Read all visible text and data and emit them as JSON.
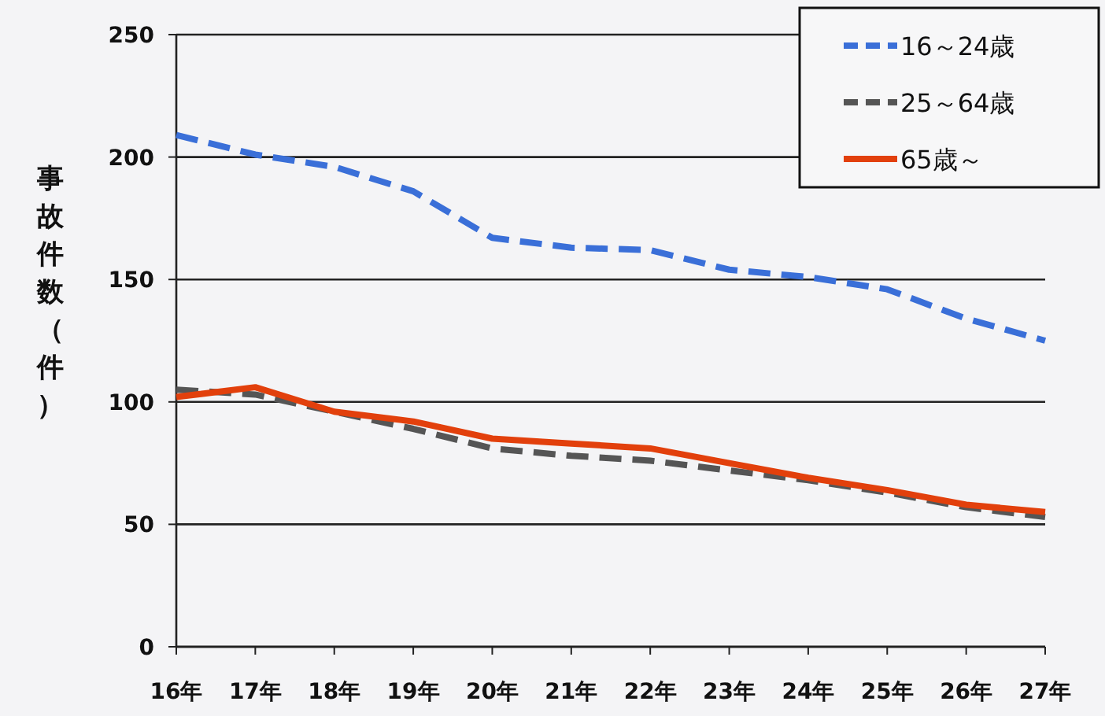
{
  "chart_data": {
    "type": "line",
    "ylabel": "事故件数（件）",
    "categories": [
      "16年",
      "17年",
      "18年",
      "19年",
      "20年",
      "21年",
      "22年",
      "23年",
      "24年",
      "25年",
      "26年",
      "27年"
    ],
    "series": [
      {
        "name": "16～24歳",
        "color": "#3a6fd8",
        "line_style": "dashed",
        "values": [
          209,
          201,
          196,
          186,
          167,
          163,
          162,
          154,
          151,
          146,
          134,
          125
        ]
      },
      {
        "name": "25～64歳",
        "color": "#555555",
        "line_style": "dashed",
        "values": [
          105,
          103,
          96,
          89,
          81,
          78,
          76,
          72,
          68,
          63,
          57,
          53
        ]
      },
      {
        "name": "65歳～",
        "color": "#e2400c",
        "line_style": "solid",
        "values": [
          102,
          106,
          96,
          92,
          85,
          83,
          81,
          75,
          69,
          64,
          58,
          55
        ]
      }
    ],
    "ylim": [
      0,
      250
    ],
    "yticks": [
      0,
      50,
      100,
      150,
      200,
      250
    ],
    "grid": "y",
    "legend": "top right",
    "marker": "none"
  }
}
